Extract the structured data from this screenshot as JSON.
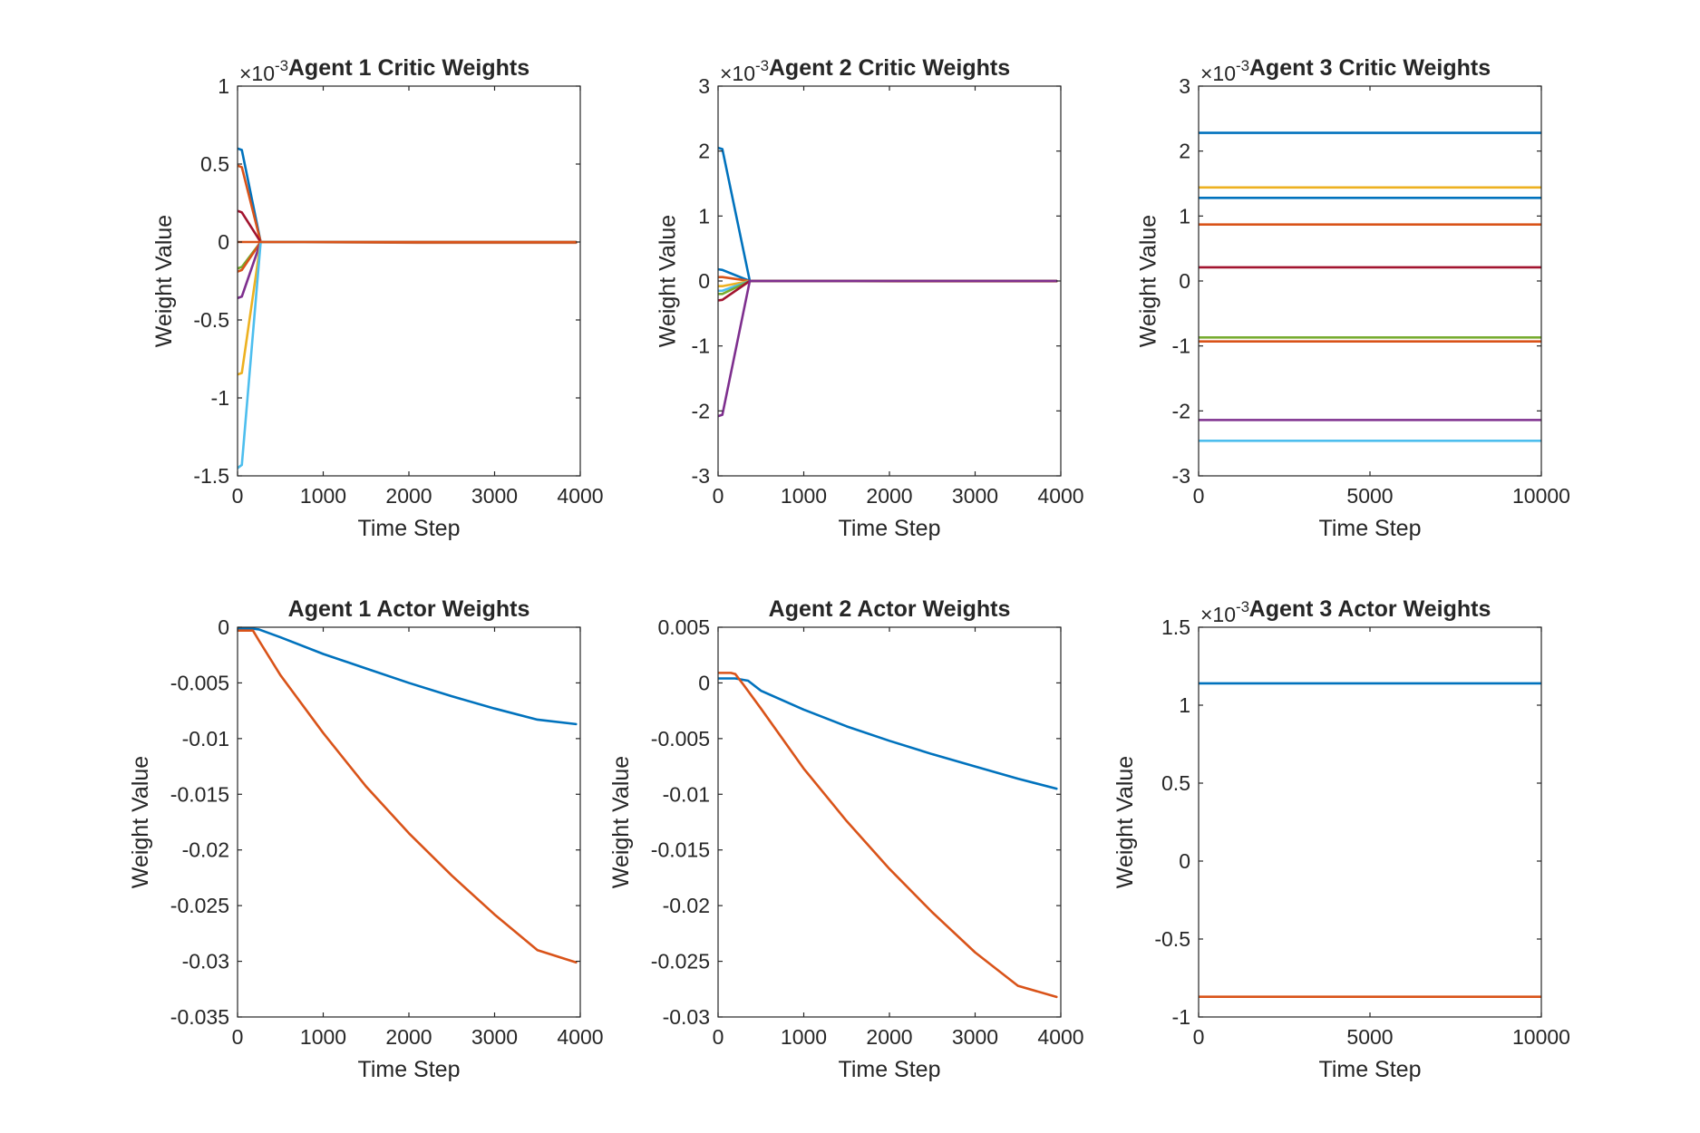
{
  "chart_data": [
    {
      "type": "line",
      "title": "Agent 1 Critic Weights",
      "xlabel": "Time Step",
      "ylabel": "Weight Value",
      "xlim": [
        0,
        4000
      ],
      "ylim": [
        -1.5,
        1
      ],
      "xticks": [
        0,
        1000,
        2000,
        3000,
        4000
      ],
      "yticks": [
        -1.5,
        -1,
        -0.5,
        0,
        0.5,
        1
      ],
      "y_exponent_label": "×10",
      "y_exponent": "-3",
      "grid": false,
      "series": [
        {
          "color": "#0072BD",
          "x": [
            0,
            50,
            270,
            2100,
            3950
          ],
          "y": [
            0.6,
            0.59,
            0,
            0,
            0
          ]
        },
        {
          "color": "#D95319",
          "x": [
            0,
            50,
            270,
            2100,
            3950
          ],
          "y": [
            0.49,
            0.48,
            0,
            -0.005,
            -0.005
          ]
        },
        {
          "color": "#A2142F",
          "x": [
            0,
            50,
            270,
            2100,
            3950
          ],
          "y": [
            0.2,
            0.19,
            0,
            0,
            0
          ]
        },
        {
          "color": "#77AC30",
          "x": [
            0,
            50,
            270,
            2100,
            3950
          ],
          "y": [
            -0.17,
            -0.16,
            0,
            0,
            0
          ]
        },
        {
          "color": "#D95319",
          "x": [
            0,
            50,
            270,
            2100,
            3950
          ],
          "y": [
            -0.19,
            -0.18,
            0,
            0,
            0
          ]
        },
        {
          "color": "#7E2F8E",
          "x": [
            0,
            50,
            270,
            2100,
            3950
          ],
          "y": [
            -0.36,
            -0.35,
            0,
            0,
            0
          ]
        },
        {
          "color": "#EDB120",
          "x": [
            0,
            50,
            270,
            2100,
            3950
          ],
          "y": [
            -0.85,
            -0.84,
            0,
            0,
            0
          ]
        },
        {
          "color": "#4DBEEE",
          "x": [
            0,
            50,
            270,
            2100,
            3950
          ],
          "y": [
            -1.45,
            -1.43,
            0,
            0,
            0
          ]
        },
        {
          "color": "#D95319",
          "x": [
            0,
            270,
            2100,
            3950
          ],
          "y": [
            0,
            0,
            0,
            0
          ]
        }
      ]
    },
    {
      "type": "line",
      "title": "Agent 2 Critic Weights",
      "xlabel": "Time Step",
      "ylabel": "Weight Value",
      "xlim": [
        0,
        4000
      ],
      "ylim": [
        -3,
        3
      ],
      "xticks": [
        0,
        1000,
        2000,
        3000,
        4000
      ],
      "yticks": [
        -3,
        -2,
        -1,
        0,
        1,
        2,
        3
      ],
      "y_exponent_label": "×10",
      "y_exponent": "-3",
      "grid": false,
      "series": [
        {
          "color": "#0072BD",
          "x": [
            0,
            50,
            370,
            2100,
            3950
          ],
          "y": [
            2.05,
            2.03,
            0,
            0,
            0
          ]
        },
        {
          "color": "#0072BD",
          "x": [
            0,
            50,
            370,
            2100,
            3950
          ],
          "y": [
            0.18,
            0.17,
            0,
            0,
            0
          ]
        },
        {
          "color": "#D95319",
          "x": [
            0,
            50,
            370,
            2100,
            3950
          ],
          "y": [
            0.06,
            0.06,
            0,
            -0.005,
            -0.005
          ]
        },
        {
          "color": "#EDB120",
          "x": [
            0,
            50,
            370,
            2100,
            3950
          ],
          "y": [
            -0.08,
            -0.08,
            0,
            0,
            0
          ]
        },
        {
          "color": "#4DBEEE",
          "x": [
            0,
            50,
            370,
            2100,
            3950
          ],
          "y": [
            -0.15,
            -0.15,
            0,
            0,
            0
          ]
        },
        {
          "color": "#77AC30",
          "x": [
            0,
            50,
            370,
            2100,
            3950
          ],
          "y": [
            -0.2,
            -0.2,
            0,
            0,
            0
          ]
        },
        {
          "color": "#A2142F",
          "x": [
            0,
            50,
            370,
            2100,
            3950
          ],
          "y": [
            -0.3,
            -0.29,
            0,
            0,
            0
          ]
        },
        {
          "color": "#7E2F8E",
          "x": [
            0,
            50,
            370,
            2100,
            3950
          ],
          "y": [
            -2.08,
            -2.06,
            0,
            0,
            0
          ]
        }
      ]
    },
    {
      "type": "line",
      "title": "Agent 3 Critic Weights",
      "xlabel": "Time Step",
      "ylabel": "Weight Value",
      "xlim": [
        0,
        10000
      ],
      "ylim": [
        -3,
        3
      ],
      "xticks": [
        0,
        5000,
        10000
      ],
      "yticks": [
        -3,
        -2,
        -1,
        0,
        1,
        2,
        3
      ],
      "y_exponent_label": "×10",
      "y_exponent": "-3",
      "grid": false,
      "series": [
        {
          "color": "#0072BD",
          "x": [
            0,
            10000
          ],
          "y": [
            2.28,
            2.28
          ]
        },
        {
          "color": "#EDB120",
          "x": [
            0,
            10000
          ],
          "y": [
            1.44,
            1.44
          ]
        },
        {
          "color": "#0072BD",
          "x": [
            0,
            10000
          ],
          "y": [
            1.28,
            1.28
          ]
        },
        {
          "color": "#D95319",
          "x": [
            0,
            10000
          ],
          "y": [
            0.87,
            0.87
          ]
        },
        {
          "color": "#A2142F",
          "x": [
            0,
            10000
          ],
          "y": [
            0.21,
            0.21
          ]
        },
        {
          "color": "#77AC30",
          "x": [
            0,
            10000
          ],
          "y": [
            -0.87,
            -0.87
          ]
        },
        {
          "color": "#D95319",
          "x": [
            0,
            10000
          ],
          "y": [
            -0.93,
            -0.93
          ]
        },
        {
          "color": "#7E2F8E",
          "x": [
            0,
            10000
          ],
          "y": [
            -2.14,
            -2.14
          ]
        },
        {
          "color": "#4DBEEE",
          "x": [
            0,
            10000
          ],
          "y": [
            -2.46,
            -2.46
          ]
        }
      ]
    },
    {
      "type": "line",
      "title": "Agent 1 Actor Weights",
      "xlabel": "Time Step",
      "ylabel": "Weight Value",
      "xlim": [
        0,
        4000
      ],
      "ylim": [
        -0.035,
        0
      ],
      "xticks": [
        0,
        1000,
        2000,
        3000,
        4000
      ],
      "yticks": [
        -0.035,
        -0.03,
        -0.025,
        -0.02,
        -0.015,
        -0.01,
        -0.005,
        0
      ],
      "grid": false,
      "series": [
        {
          "color": "#0072BD",
          "x": [
            0,
            150,
            250,
            500,
            1000,
            1500,
            2000,
            2500,
            3000,
            3500,
            3950
          ],
          "y": [
            -0.0001,
            -0.0001,
            -0.0002,
            -0.0009,
            -0.0024,
            -0.0037,
            -0.005,
            -0.0062,
            -0.0073,
            -0.0083,
            -0.0087
          ]
        },
        {
          "color": "#D95319",
          "x": [
            0,
            180,
            250,
            500,
            1000,
            1500,
            2000,
            2500,
            3000,
            3500,
            3950
          ],
          "y": [
            -0.0003,
            -0.0003,
            -0.0012,
            -0.0043,
            -0.0095,
            -0.0143,
            -0.0185,
            -0.0223,
            -0.0258,
            -0.029,
            -0.0301
          ]
        }
      ]
    },
    {
      "type": "line",
      "title": "Agent 2 Actor Weights",
      "xlabel": "Time Step",
      "ylabel": "Weight Value",
      "xlim": [
        0,
        4000
      ],
      "ylim": [
        -0.03,
        0.005
      ],
      "xticks": [
        0,
        1000,
        2000,
        3000,
        4000
      ],
      "yticks": [
        -0.03,
        -0.025,
        -0.02,
        -0.015,
        -0.01,
        -0.005,
        0,
        0.005
      ],
      "grid": false,
      "series": [
        {
          "color": "#0072BD",
          "x": [
            0,
            200,
            350,
            500,
            1000,
            1500,
            2000,
            2500,
            3000,
            3500,
            3950
          ],
          "y": [
            0.0004,
            0.0004,
            0.0002,
            -0.0007,
            -0.0024,
            -0.0039,
            -0.0052,
            -0.0064,
            -0.0075,
            -0.0086,
            -0.0095
          ]
        },
        {
          "color": "#D95319",
          "x": [
            0,
            150,
            200,
            300,
            500,
            1000,
            1500,
            2000,
            2500,
            3000,
            3500,
            3950
          ],
          "y": [
            0.0009,
            0.0009,
            0.0008,
            -0.0002,
            -0.0023,
            -0.0077,
            -0.0124,
            -0.0167,
            -0.0206,
            -0.0242,
            -0.0272,
            -0.0282
          ]
        }
      ]
    },
    {
      "type": "line",
      "title": "Agent 3 Actor Weights",
      "xlabel": "Time Step",
      "ylabel": "Weight Value",
      "xlim": [
        0,
        10000
      ],
      "ylim": [
        -1,
        1.5
      ],
      "xticks": [
        0,
        5000,
        10000
      ],
      "yticks": [
        -1,
        -0.5,
        0,
        0.5,
        1,
        1.5
      ],
      "y_exponent_label": "×10",
      "y_exponent": "-3",
      "grid": false,
      "series": [
        {
          "color": "#0072BD",
          "x": [
            0,
            10000
          ],
          "y": [
            1.14,
            1.14
          ]
        },
        {
          "color": "#D95319",
          "x": [
            0,
            10000
          ],
          "y": [
            -0.87,
            -0.87
          ]
        }
      ]
    }
  ]
}
